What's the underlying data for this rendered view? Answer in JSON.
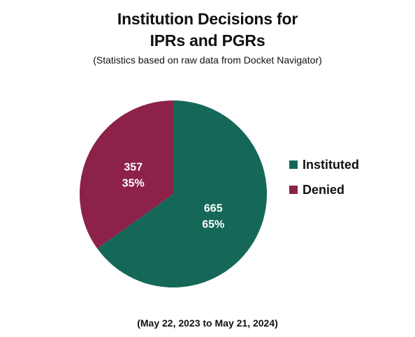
{
  "header": {
    "title_line1": "Institution Decisions for",
    "title_line2": "IPRs and PGRs",
    "subtitle": "(Statistics based on raw data from Docket Navigator)"
  },
  "footnote": "(May 22, 2023 to May 21, 2024)",
  "chart_data": {
    "type": "pie",
    "title": "Institution Decisions for IPRs and PGRs",
    "subtitle": "(Statistics based on raw data from Docket Navigator)",
    "slices": [
      {
        "name": "Instituted",
        "value": 665,
        "percent_label": "65%",
        "color": "#156858"
      },
      {
        "name": "Denied",
        "value": 357,
        "percent_label": "35%",
        "color": "#8c214a"
      }
    ],
    "start": "12 o'clock",
    "direction": "clockwise",
    "legend": "right"
  }
}
